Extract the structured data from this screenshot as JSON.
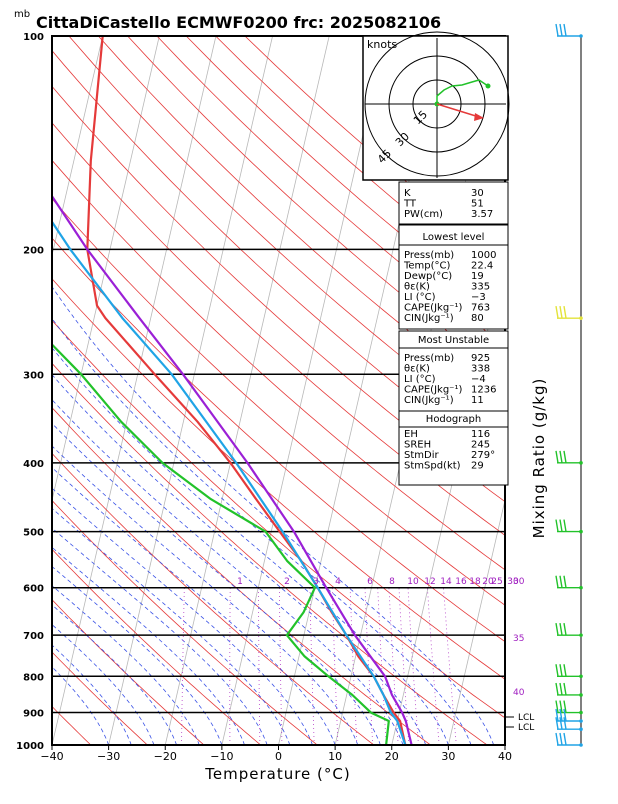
{
  "header": {
    "unit_mb": "mb",
    "title": "CittaDiCastello ECMWF0200  frc: 2025082106"
  },
  "axes": {
    "xlabel": "Temperature (°C)",
    "right_label": "Mixing Ratio (g/kg)"
  },
  "chart_data": {
    "type": "line",
    "diagram": "skew-T log-p",
    "ylim_hpa": [
      1000,
      100
    ],
    "xlim_c": [
      -40,
      40
    ],
    "x_ticks": [
      -40,
      -30,
      -20,
      -10,
      0,
      10,
      20,
      30,
      40
    ],
    "p_ticks": [
      1000,
      900,
      800,
      700,
      600,
      500,
      400,
      300,
      200,
      100
    ],
    "series": [
      {
        "name": "",
        "kind": "temperature",
        "color": "#e53a3a",
        "p": [
          1000,
          925,
          900,
          850,
          800,
          750,
          700,
          650,
          600,
          550,
          500,
          450,
          400,
          350,
          300,
          250,
          240,
          200,
          150,
          100
        ],
        "t": [
          22.4,
          20.5,
          19,
          16.5,
          14,
          10.5,
          7.5,
          4,
          0.5,
          -3.5,
          -8.5,
          -14,
          -20,
          -27.5,
          -37,
          -48,
          -50,
          -54,
          -57,
          -60
        ]
      },
      {
        "name": "",
        "kind": "dewpoint",
        "color": "#22c22a",
        "p": [
          1000,
          925,
          900,
          850,
          800,
          750,
          700,
          650,
          600,
          550,
          500,
          450,
          400,
          350,
          300,
          250,
          200,
          150,
          100
        ],
        "t": [
          19,
          18.5,
          15,
          11,
          6,
          1,
          -3,
          -1,
          0,
          -6,
          -11,
          -22,
          -32,
          -41,
          -50,
          -62,
          -70,
          -78,
          -85
        ]
      },
      {
        "name": "",
        "kind": "virtual-parcel",
        "color": "#9b20d6",
        "p": [
          1000,
          925,
          900,
          850,
          800,
          700,
          600,
          500,
          400,
          300,
          250,
          200,
          150,
          100
        ],
        "t": [
          23.5,
          21.5,
          20.5,
          18,
          16,
          9,
          2,
          -6,
          -17,
          -32,
          -42,
          -54,
          -68,
          -85
        ]
      },
      {
        "name": "",
        "kind": "parcel",
        "color": "#20a4e6",
        "p": [
          1000,
          925,
          900,
          850,
          800,
          700,
          600,
          500,
          400,
          300,
          250,
          200,
          150,
          100
        ],
        "t": [
          22.4,
          20,
          18.5,
          16.5,
          14,
          7.5,
          0.5,
          -8,
          -19,
          -34,
          -45,
          -57,
          -71,
          -88
        ]
      }
    ],
    "mixing_ratio_labels": [
      "1",
      "2",
      "3",
      "4",
      "6",
      "8",
      "10",
      "12",
      "14",
      "16",
      "18",
      "20",
      "25",
      "30"
    ],
    "right_edge_labels": [
      "30",
      "35",
      "40"
    ],
    "lcl_labels": [
      "LCL",
      "LCL"
    ],
    "wind_barbs": [
      {
        "p": 100,
        "color": "#20a4e6"
      },
      {
        "p": 250,
        "color": "#e3e33a"
      },
      {
        "p": 400,
        "color": "#22c22a"
      },
      {
        "p": 500,
        "color": "#22c22a"
      },
      {
        "p": 600,
        "color": "#22c22a"
      },
      {
        "p": 700,
        "color": "#22c22a"
      },
      {
        "p": 800,
        "color": "#22c22a"
      },
      {
        "p": 850,
        "color": "#22c22a"
      },
      {
        "p": 900,
        "color": "#22c22a"
      },
      {
        "p": 925,
        "color": "#20a4e6"
      },
      {
        "p": 950,
        "color": "#20a4e6"
      },
      {
        "p": 1000,
        "color": "#20a4e6"
      }
    ]
  },
  "hodograph": {
    "unit": "knots",
    "ring_labels": [
      "15",
      "30",
      "45"
    ],
    "trace_color": "#22c22a",
    "storm_motion_color": "#e53a3a"
  },
  "indices": {
    "basic": [
      {
        "label": "K",
        "value": "30"
      },
      {
        "label": "TT",
        "value": "51"
      },
      {
        "label": "PW(cm)",
        "value": "3.57"
      }
    ],
    "lowest_title": "Lowest level",
    "lowest": [
      {
        "label": "Press(mb)",
        "value": "1000"
      },
      {
        "label": "Temp(°C)",
        "value": "22.4"
      },
      {
        "label": "Dewp(°C)",
        "value": "19"
      },
      {
        "label": "θε(K)",
        "value": "335"
      },
      {
        "label": "LI (°C)",
        "value": "−3"
      },
      {
        "label": "CAPE(Jkg⁻¹)",
        "value": "763"
      },
      {
        "label": "CIN(Jkg⁻¹)",
        "value": "80"
      }
    ],
    "unstable_title": "Most Unstable",
    "unstable": [
      {
        "label": "Press(mb)",
        "value": "925"
      },
      {
        "label": "θε(K)",
        "value": "338"
      },
      {
        "label": "LI (°C)",
        "value": "−4"
      },
      {
        "label": "CAPE(Jkg⁻¹)",
        "value": "1236"
      },
      {
        "label": "CIN(Jkg⁻¹)",
        "value": "11"
      }
    ],
    "hodo_title": "Hodograph",
    "hodo": [
      {
        "label": "EH",
        "value": "116"
      },
      {
        "label": "SREH",
        "value": "245"
      },
      {
        "label": "StmDir",
        "value": "279°"
      },
      {
        "label": "StmSpd(kt)",
        "value": "29"
      }
    ]
  }
}
